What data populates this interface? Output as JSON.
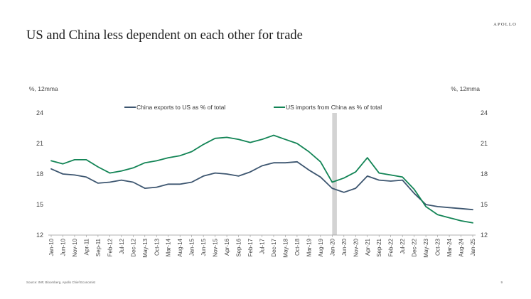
{
  "brand": "APOLLO",
  "title": "US and China less dependent on each other for trade",
  "source": "Source: IMF, Bloomberg, Apollo Chief Economist",
  "page_number": "9",
  "chart_data": {
    "type": "line",
    "title": "US and China less dependent on each other for trade",
    "ylabel_left": "%, 12mma",
    "ylabel_right": "%, 12mma",
    "ylim": [
      12,
      24
    ],
    "yticks": [
      12,
      15,
      18,
      21,
      24
    ],
    "xlim": [
      "2010-01",
      "2025-01"
    ],
    "legend_position": "top-center",
    "grid": false,
    "highlight": {
      "start": "2020-01",
      "end": "2020-03",
      "color": "#d3d3d3"
    },
    "x_tick_labels": [
      "Jan-10",
      "Jun-10",
      "Nov-10",
      "Apr-11",
      "Sep-11",
      "Feb-12",
      "Jul-12",
      "Dec-12",
      "May-13",
      "Oct-13",
      "Mar-14",
      "Aug-14",
      "Jan-15",
      "Jun-15",
      "Nov-15",
      "Apr-16",
      "Sep-16",
      "Feb-17",
      "Jul-17",
      "Dec-17",
      "May-18",
      "Oct-18",
      "Mar-19",
      "Aug-19",
      "Jan-20",
      "Jun-20",
      "Nov-20",
      "Apr-21",
      "Sep-21",
      "Feb-22",
      "Jul-22",
      "Dec-22",
      "May-23",
      "Oct-23",
      "Mar-24",
      "Aug-24",
      "Jan-25"
    ],
    "x": [
      "2010-01",
      "2010-06",
      "2010-11",
      "2011-04",
      "2011-09",
      "2012-02",
      "2012-07",
      "2012-12",
      "2013-05",
      "2013-10",
      "2014-03",
      "2014-08",
      "2015-01",
      "2015-06",
      "2015-11",
      "2016-04",
      "2016-09",
      "2017-02",
      "2017-07",
      "2017-12",
      "2018-05",
      "2018-10",
      "2019-03",
      "2019-08",
      "2020-01",
      "2020-06",
      "2020-11",
      "2021-04",
      "2021-09",
      "2022-02",
      "2022-07",
      "2022-12",
      "2023-05",
      "2023-10",
      "2024-03",
      "2024-08",
      "2025-01"
    ],
    "series": [
      {
        "name": "China exports to US as % of total",
        "color": "#3d5670",
        "values": [
          18.5,
          18.0,
          17.9,
          17.7,
          17.1,
          17.2,
          17.4,
          17.2,
          16.6,
          16.7,
          17.0,
          17.0,
          17.2,
          17.8,
          18.1,
          18.0,
          17.8,
          18.2,
          18.8,
          19.1,
          19.1,
          19.2,
          18.4,
          17.7,
          16.6,
          16.2,
          16.6,
          17.8,
          17.4,
          17.3,
          17.4,
          16.1,
          15.0,
          14.8,
          14.7,
          14.6,
          14.5
        ]
      },
      {
        "name": "US imports from China as % of total",
        "color": "#128455",
        "values": [
          19.3,
          19.0,
          19.4,
          19.4,
          18.7,
          18.1,
          18.3,
          18.6,
          19.1,
          19.3,
          19.6,
          19.8,
          20.2,
          20.9,
          21.5,
          21.6,
          21.4,
          21.1,
          21.4,
          21.8,
          21.4,
          21.0,
          20.2,
          19.2,
          17.2,
          17.6,
          18.2,
          19.6,
          18.1,
          17.9,
          17.7,
          16.5,
          14.8,
          14.0,
          13.7,
          13.4,
          13.2
        ]
      }
    ]
  }
}
